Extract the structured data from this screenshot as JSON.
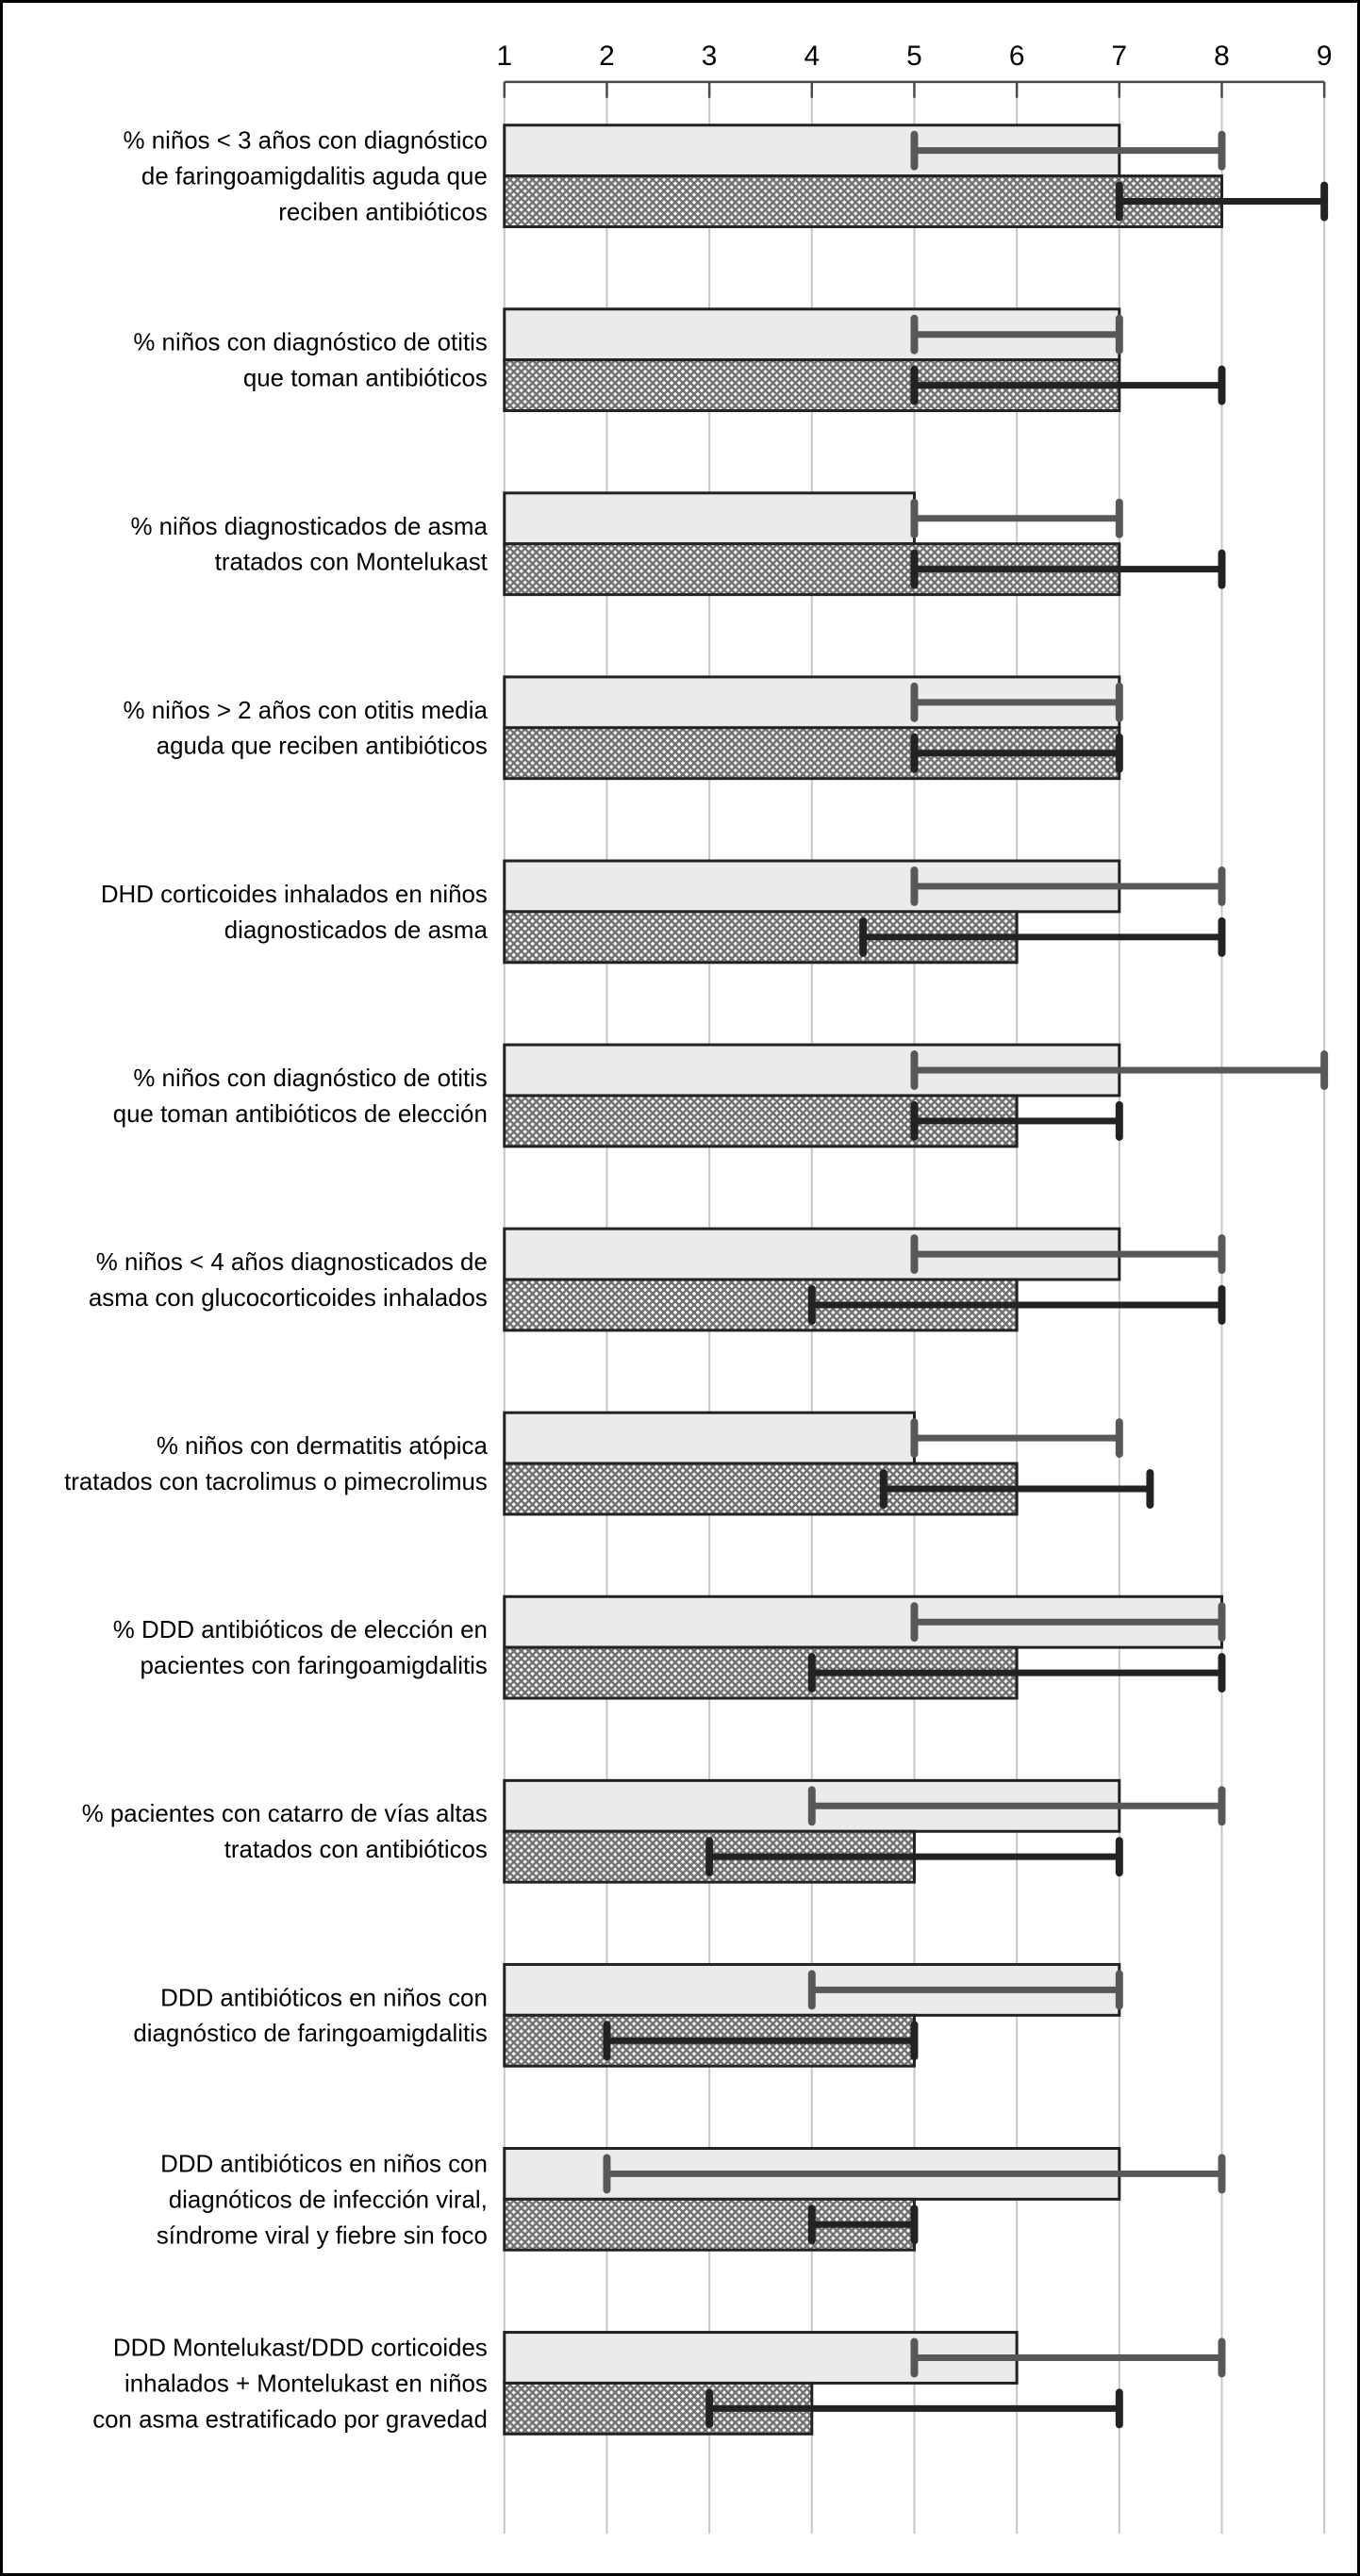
{
  "colors": {
    "background": "#ffffff",
    "frame_border": "#000000",
    "grid": "#c6c6c6",
    "axis": "#4a4a4a",
    "tick_label": "#000000",
    "category_label": "#000000",
    "bar_light_fill": "#ebebeb",
    "bar_stroke": "#222222",
    "hatch_line": "#6f6f6f",
    "whisker_light": "#585858",
    "whisker_dark": "#222222"
  },
  "chart_data": {
    "type": "bar",
    "orientation": "horizontal",
    "title": "",
    "xlabel": "",
    "ylabel": "",
    "xlim": [
      1,
      9
    ],
    "x_ticks": [
      1,
      2,
      3,
      4,
      5,
      6,
      7,
      8,
      9
    ],
    "grid": true,
    "legend": "none",
    "bar_origin": 1,
    "series_styles": [
      {
        "key": "light",
        "fill": "solid-light-gray",
        "description": "upper bar of each pair, median with range whisker"
      },
      {
        "key": "hatched",
        "fill": "crosshatch",
        "description": "lower bar of each pair, median with range whisker"
      }
    ],
    "rows": [
      {
        "label_lines": [
          "% niños < 3 años con diagnóstico",
          "de faringoamigdalitis aguda que",
          "reciben antibióticos"
        ],
        "light": {
          "value": 7,
          "range": [
            5,
            8
          ]
        },
        "hatched": {
          "value": 8,
          "range": [
            7,
            9
          ]
        }
      },
      {
        "label_lines": [
          "% niños con diagnóstico de otitis",
          "que toman antibióticos"
        ],
        "light": {
          "value": 7,
          "range": [
            5,
            7
          ]
        },
        "hatched": {
          "value": 7,
          "range": [
            5,
            8
          ]
        }
      },
      {
        "label_lines": [
          "% niños diagnosticados de asma",
          "tratados con Montelukast"
        ],
        "light": {
          "value": 5,
          "range": [
            5,
            7
          ]
        },
        "hatched": {
          "value": 7,
          "range": [
            5,
            8
          ]
        }
      },
      {
        "label_lines": [
          "% niños > 2 años con otitis media",
          "aguda que reciben antibióticos"
        ],
        "light": {
          "value": 7,
          "range": [
            5,
            7
          ]
        },
        "hatched": {
          "value": 7,
          "range": [
            5,
            7
          ]
        }
      },
      {
        "label_lines": [
          "DHD corticoides inhalados en niños",
          "diagnosticados de asma"
        ],
        "light": {
          "value": 7,
          "range": [
            5,
            8
          ]
        },
        "hatched": {
          "value": 6,
          "range": [
            4.5,
            8
          ]
        }
      },
      {
        "label_lines": [
          "% niños con diagnóstico de otitis",
          "que toman antibióticos de elección"
        ],
        "light": {
          "value": 7,
          "range": [
            5,
            9
          ]
        },
        "hatched": {
          "value": 6,
          "range": [
            5,
            7
          ]
        }
      },
      {
        "label_lines": [
          "% niños < 4 años diagnosticados de",
          "asma con glucocorticoides inhalados"
        ],
        "light": {
          "value": 7,
          "range": [
            5,
            8
          ]
        },
        "hatched": {
          "value": 6,
          "range": [
            4,
            8
          ]
        }
      },
      {
        "label_lines": [
          "% niños con dermatitis atópica",
          "tratados con tacrolimus o pimecrolimus"
        ],
        "light": {
          "value": 5,
          "range": [
            5,
            7
          ]
        },
        "hatched": {
          "value": 6,
          "range": [
            4.7,
            7.3
          ]
        }
      },
      {
        "label_lines": [
          "% DDD antibióticos de elección en",
          "pacientes con faringoamigdalitis"
        ],
        "light": {
          "value": 8,
          "range": [
            5,
            8
          ]
        },
        "hatched": {
          "value": 6,
          "range": [
            4,
            8
          ]
        }
      },
      {
        "label_lines": [
          "% pacientes con catarro de vías altas",
          "tratados con antibióticos"
        ],
        "light": {
          "value": 7,
          "range": [
            4,
            8
          ]
        },
        "hatched": {
          "value": 5,
          "range": [
            3,
            7
          ]
        }
      },
      {
        "label_lines": [
          "DDD antibióticos en niños con",
          "diagnóstico de faringoamigdalitis"
        ],
        "light": {
          "value": 7,
          "range": [
            4,
            7
          ]
        },
        "hatched": {
          "value": 5,
          "range": [
            2,
            5
          ]
        }
      },
      {
        "label_lines": [
          "DDD antibióticos en niños con",
          "diagnóticos de infección viral,",
          "síndrome viral y fiebre sin foco"
        ],
        "light": {
          "value": 7,
          "range": [
            2,
            8
          ]
        },
        "hatched": {
          "value": 5,
          "range": [
            4,
            5
          ]
        }
      },
      {
        "label_lines": [
          "DDD Montelukast/DDD corticoides",
          "inhalados + Montelukast en niños",
          "con asma estratificado por gravedad"
        ],
        "light": {
          "value": 6,
          "range": [
            5,
            8
          ]
        },
        "hatched": {
          "value": 4,
          "range": [
            3,
            7
          ]
        }
      }
    ]
  }
}
